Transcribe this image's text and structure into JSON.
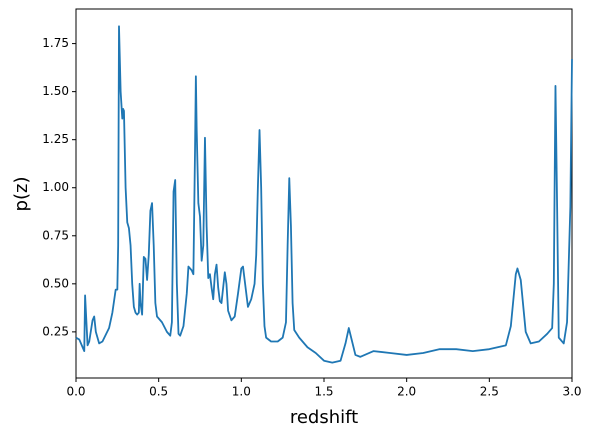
{
  "chart_data": {
    "type": "line",
    "x_label": "redshift",
    "y_label": "p(z)",
    "color": "#1f77b4",
    "x": [
      0,
      0.02,
      0.04,
      0.05,
      0.055,
      0.07,
      0.08,
      0.1,
      0.11,
      0.12,
      0.14,
      0.16,
      0.2,
      0.22,
      0.24,
      0.25,
      0.255,
      0.26,
      0.27,
      0.28,
      0.285,
      0.29,
      0.3,
      0.31,
      0.32,
      0.33,
      0.34,
      0.35,
      0.36,
      0.37,
      0.38,
      0.385,
      0.39,
      0.4,
      0.41,
      0.42,
      0.43,
      0.44,
      0.45,
      0.46,
      0.47,
      0.48,
      0.49,
      0.52,
      0.55,
      0.57,
      0.58,
      0.59,
      0.6,
      0.61,
      0.62,
      0.63,
      0.65,
      0.67,
      0.68,
      0.7,
      0.71,
      0.72,
      0.725,
      0.73,
      0.74,
      0.75,
      0.76,
      0.77,
      0.78,
      0.79,
      0.8,
      0.81,
      0.82,
      0.83,
      0.84,
      0.85,
      0.86,
      0.87,
      0.88,
      0.9,
      0.91,
      0.92,
      0.94,
      0.96,
      0.98,
      1.0,
      1.01,
      1.02,
      1.04,
      1.06,
      1.08,
      1.09,
      1.1,
      1.11,
      1.12,
      1.13,
      1.14,
      1.15,
      1.18,
      1.22,
      1.25,
      1.27,
      1.28,
      1.29,
      1.3,
      1.31,
      1.32,
      1.35,
      1.4,
      1.45,
      1.5,
      1.55,
      1.6,
      1.63,
      1.65,
      1.67,
      1.69,
      1.72,
      1.8,
      1.9,
      2.0,
      2.1,
      2.2,
      2.3,
      2.4,
      2.5,
      2.6,
      2.63,
      2.66,
      2.67,
      2.69,
      2.72,
      2.75,
      2.8,
      2.85,
      2.88,
      2.89,
      2.9,
      2.91,
      2.92,
      2.95,
      2.97,
      2.99,
      3.0
    ],
    "values": [
      0.22,
      0.21,
      0.17,
      0.15,
      0.44,
      0.18,
      0.2,
      0.31,
      0.33,
      0.25,
      0.19,
      0.2,
      0.27,
      0.35,
      0.47,
      0.47,
      0.7,
      1.84,
      1.5,
      1.36,
      1.41,
      1.4,
      1.0,
      0.82,
      0.79,
      0.7,
      0.5,
      0.38,
      0.35,
      0.34,
      0.35,
      0.5,
      0.4,
      0.34,
      0.64,
      0.63,
      0.52,
      0.65,
      0.88,
      0.92,
      0.7,
      0.4,
      0.33,
      0.3,
      0.25,
      0.23,
      0.3,
      0.98,
      1.04,
      0.5,
      0.24,
      0.23,
      0.28,
      0.45,
      0.59,
      0.57,
      0.55,
      1.2,
      1.58,
      1.3,
      0.92,
      0.85,
      0.62,
      0.7,
      1.26,
      0.8,
      0.53,
      0.55,
      0.48,
      0.42,
      0.55,
      0.6,
      0.48,
      0.41,
      0.4,
      0.56,
      0.5,
      0.36,
      0.31,
      0.33,
      0.45,
      0.58,
      0.59,
      0.52,
      0.38,
      0.42,
      0.5,
      0.65,
      1.0,
      1.3,
      1.0,
      0.5,
      0.28,
      0.22,
      0.2,
      0.2,
      0.22,
      0.3,
      0.7,
      1.05,
      0.8,
      0.4,
      0.26,
      0.22,
      0.17,
      0.14,
      0.1,
      0.09,
      0.1,
      0.19,
      0.27,
      0.2,
      0.13,
      0.12,
      0.15,
      0.14,
      0.13,
      0.14,
      0.16,
      0.16,
      0.15,
      0.16,
      0.18,
      0.28,
      0.55,
      0.58,
      0.52,
      0.25,
      0.19,
      0.2,
      0.24,
      0.27,
      0.5,
      1.53,
      0.9,
      0.22,
      0.19,
      0.3,
      0.9,
      1.67
    ],
    "xlim": [
      0,
      3
    ],
    "ylim": [
      0.01,
      1.93
    ],
    "xticks": [
      {
        "value": 0,
        "label": "0.0"
      },
      0.5,
      {
        "value": 1,
        "label": "1.0"
      },
      1.5,
      {
        "value": 2,
        "label": "2.0"
      },
      2.5,
      {
        "value": 3,
        "label": "3.0"
      }
    ],
    "yticks": [
      0.25,
      {
        "value": 0.5,
        "label": "0.50"
      },
      0.75,
      {
        "value": 1,
        "label": "1.00"
      },
      1.25,
      {
        "value": 1.5,
        "label": "1.50"
      },
      1.75
    ]
  }
}
